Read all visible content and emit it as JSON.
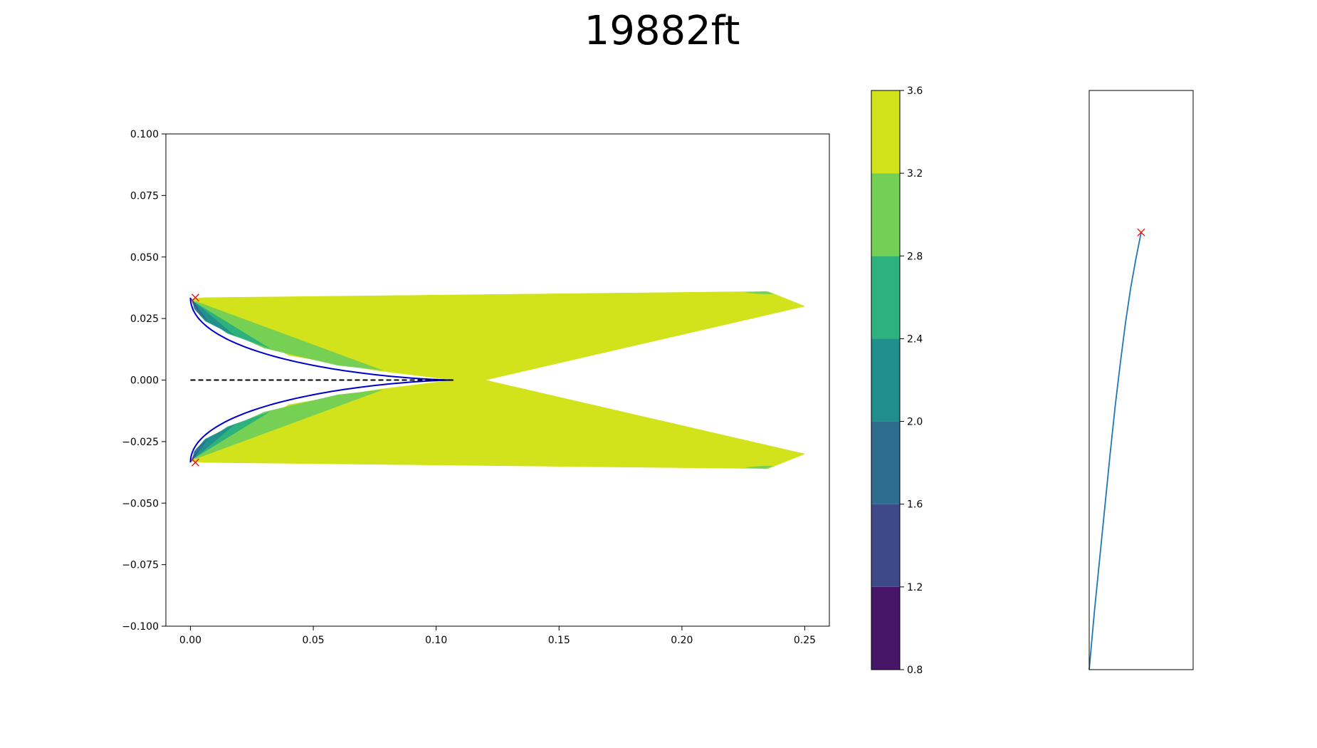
{
  "chart_data": [
    {
      "type": "contour",
      "title": "19882ft",
      "xlim": [
        -0.01,
        0.26
      ],
      "ylim": [
        -0.1,
        0.1
      ],
      "x_ticks": [
        0.0,
        0.05,
        0.1,
        0.15,
        0.2,
        0.25
      ],
      "x_tick_labels": [
        "0.00",
        "0.05",
        "0.10",
        "0.15",
        "0.20",
        "0.25"
      ],
      "y_ticks": [
        0.1,
        0.075,
        0.05,
        0.025,
        0.0,
        -0.025,
        -0.05,
        -0.075,
        -0.1
      ],
      "y_tick_labels": [
        "0.100",
        "0.075",
        "0.050",
        "0.025",
        "0.000",
        "−0.025",
        "−0.050",
        "−0.075",
        "−0.100"
      ],
      "airfoil_outline_color": "#0000cc",
      "chord_line_color": "#000000",
      "markers": [
        {
          "x": 0.002,
          "y": 0.0335,
          "color": "#ff0000"
        },
        {
          "x": 0.002,
          "y": -0.0335,
          "color": "#ff0000"
        }
      ],
      "regions": [
        {
          "level": 3.4,
          "color": "#d2e21b",
          "polygons": [
            [
              [
                0.006,
                0.0335
              ],
              [
                0.235,
                0.036
              ],
              [
                0.25,
                0.03
              ],
              [
                0.12,
                0.0
              ],
              [
                0.107,
                0.0
              ],
              [
                0.075,
                0.004
              ],
              [
                0.04,
                0.01
              ],
              [
                0.0,
                0.033
              ]
            ],
            [
              [
                0.006,
                -0.0335
              ],
              [
                0.235,
                -0.036
              ],
              [
                0.25,
                -0.03
              ],
              [
                0.12,
                0.0
              ],
              [
                0.107,
                0.0
              ],
              [
                0.075,
                -0.004
              ],
              [
                0.04,
                -0.01
              ],
              [
                0.0,
                -0.033
              ]
            ]
          ]
        },
        {
          "level": 3.0,
          "color": "#75d054",
          "polygons": [
            [
              [
                0.002,
                0.032
              ],
              [
                0.078,
                0.004
              ],
              [
                0.06,
                0.006
              ],
              [
                0.03,
                0.013
              ],
              [
                0.01,
                0.022
              ],
              [
                0.003,
                0.029
              ]
            ],
            [
              [
                0.002,
                -0.032
              ],
              [
                0.078,
                -0.004
              ],
              [
                0.06,
                -0.006
              ],
              [
                0.03,
                -0.013
              ],
              [
                0.01,
                -0.022
              ],
              [
                0.003,
                -0.029
              ]
            ],
            [
              [
                0.226,
                0.0355
              ],
              [
                0.234,
                0.036
              ],
              [
                0.237,
                0.035
              ],
              [
                0.232,
                0.035
              ]
            ],
            [
              [
                0.226,
                -0.0355
              ],
              [
                0.234,
                -0.036
              ],
              [
                0.237,
                -0.035
              ],
              [
                0.232,
                -0.035
              ]
            ]
          ]
        },
        {
          "level": 2.6,
          "color": "#2db27d",
          "polygons": [
            [
              [
                0.001,
                0.032
              ],
              [
                0.032,
                0.013
              ],
              [
                0.015,
                0.019
              ],
              [
                0.006,
                0.025
              ],
              [
                0.002,
                0.029
              ]
            ],
            [
              [
                0.001,
                -0.032
              ],
              [
                0.032,
                -0.013
              ],
              [
                0.015,
                -0.019
              ],
              [
                0.006,
                -0.025
              ],
              [
                0.002,
                -0.029
              ]
            ]
          ]
        },
        {
          "level": 2.2,
          "color": "#21918c",
          "polygons": [
            [
              [
                0.0008,
                0.0325
              ],
              [
                0.018,
                0.018
              ],
              [
                0.006,
                0.024
              ],
              [
                0.0015,
                0.029
              ]
            ],
            [
              [
                0.0008,
                -0.0325
              ],
              [
                0.018,
                -0.018
              ],
              [
                0.006,
                -0.024
              ],
              [
                0.0015,
                -0.029
              ]
            ]
          ]
        },
        {
          "level": 1.8,
          "color": "#2c728e",
          "polygons": [
            [
              [
                0.0005,
                0.033
              ],
              [
                0.007,
                0.024
              ],
              [
                0.0025,
                0.028
              ]
            ],
            [
              [
                0.0005,
                -0.033
              ],
              [
                0.007,
                -0.024
              ],
              [
                0.0025,
                -0.028
              ]
            ]
          ]
        },
        {
          "level": 1.4,
          "color": "#3b528b",
          "polygons": [
            [
              [
                0.0003,
                0.033
              ],
              [
                0.003,
                0.029
              ],
              [
                0.001,
                0.031
              ]
            ],
            [
              [
                0.0003,
                -0.033
              ],
              [
                0.003,
                -0.029
              ],
              [
                0.001,
                -0.031
              ]
            ]
          ]
        }
      ]
    },
    {
      "type": "colorbar",
      "levels": [
        0.8,
        1.2,
        1.6,
        2.0,
        2.4,
        2.8,
        3.2,
        3.6
      ],
      "tick_labels": [
        "0.8",
        "1.2",
        "1.6",
        "2.0",
        "2.4",
        "2.8",
        "3.2",
        "3.6"
      ],
      "colors": [
        "#471669",
        "#3e4989",
        "#2f6d8e",
        "#218f8d",
        "#2db27d",
        "#74d055",
        "#d2e21b"
      ]
    },
    {
      "type": "line",
      "xlim": [
        0.0,
        1.0
      ],
      "ylim": [
        0.0,
        1.0
      ],
      "line_color": "#1f77b4",
      "x": [
        0.0,
        0.05,
        0.1,
        0.15,
        0.2,
        0.25,
        0.3,
        0.35,
        0.4,
        0.45,
        0.5
      ],
      "y": [
        0.0,
        0.1,
        0.19,
        0.28,
        0.37,
        0.455,
        0.53,
        0.6,
        0.66,
        0.71,
        0.755
      ],
      "marker": {
        "x": 0.5,
        "y": 0.755,
        "color": "#ff0000"
      }
    }
  ]
}
